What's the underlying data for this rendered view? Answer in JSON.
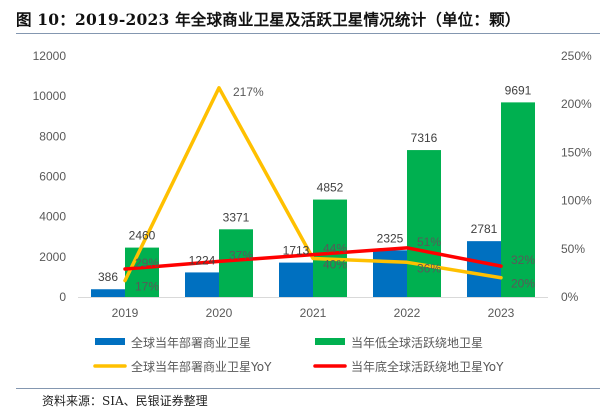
{
  "figure": {
    "title": "图 10：2019-2023 年全球商业卫星及活跃卫星情况统计（单位：颗）",
    "source": "资料来源：SIA、民银证券整理"
  },
  "chart_data": {
    "type": "bar",
    "title": "2019-2023 年全球商业卫星及活跃卫星情况统计（单位：颗）",
    "categories": [
      "2019",
      "2020",
      "2021",
      "2022",
      "2023"
    ],
    "xlabel": "",
    "ylabel": "",
    "ylim": [
      0,
      12000
    ],
    "yticks": [
      0,
      2000,
      4000,
      6000,
      8000,
      10000,
      12000
    ],
    "y2lim": [
      0,
      250
    ],
    "y2ticks": [
      0,
      50,
      100,
      150,
      200,
      250
    ],
    "y2tick_suffix": "%",
    "grid": false,
    "legend_position": "bottom",
    "series": [
      {
        "name": "全球当年部署商业卫星",
        "type": "bar",
        "axis": "left",
        "color": "#0070c0",
        "values": [
          386,
          1224,
          1713,
          2325,
          2781
        ],
        "labels": [
          "386",
          "1224",
          "1713",
          "2325",
          "2781"
        ]
      },
      {
        "name": "当年低全球活跃绕地卫星",
        "type": "bar",
        "axis": "left",
        "color": "#00b050",
        "values": [
          2460,
          3371,
          4852,
          7316,
          9691
        ],
        "labels": [
          "2460",
          "3371",
          "4852",
          "7316",
          "9691"
        ]
      },
      {
        "name": "全球当年部署商业卫星YoY",
        "type": "line",
        "axis": "right",
        "color": "#ffc000",
        "values": [
          17,
          217,
          40,
          36,
          20
        ],
        "labels": [
          "17%",
          "217%",
          "40%",
          "36%",
          "20%"
        ]
      },
      {
        "name": "当年底全球活跃绕地卫星YoY",
        "type": "line",
        "axis": "right",
        "color": "#ff0000",
        "values": [
          29,
          37,
          44,
          51,
          32
        ],
        "labels": [
          "29%",
          "37%",
          "44%",
          "51%",
          "32%"
        ]
      }
    ],
    "colors": {
      "axis_line": "#d9d9d9",
      "tick_text": "#595959",
      "label_text": "#404040"
    }
  }
}
